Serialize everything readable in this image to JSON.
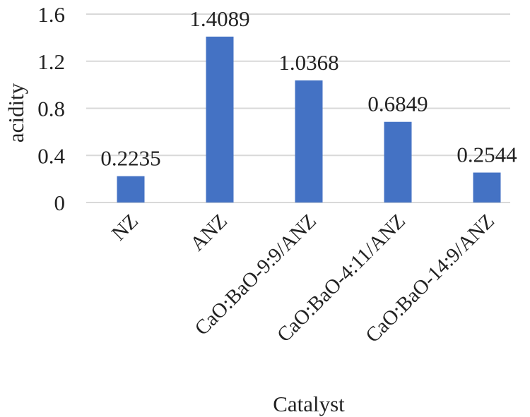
{
  "chart_data": {
    "type": "bar",
    "title": "",
    "xlabel": "Catalyst",
    "ylabel": "acidity",
    "categories": [
      "NZ",
      "ANZ",
      "CaO:BaO-9:9/ANZ",
      "CaO:BaO-4:11/ANZ",
      "CaO:BaO-14:9/ANZ"
    ],
    "values": [
      0.2235,
      1.4089,
      1.0368,
      0.6849,
      0.2544
    ],
    "data_labels": [
      "0.2235",
      "1.4089",
      "1.0368",
      "0.6849",
      "0.2544"
    ],
    "yticks": [
      "0",
      "0.4",
      "0.8",
      "1.2",
      "1.6"
    ],
    "ylim": [
      0,
      1.6
    ],
    "grid": true,
    "legend": "none",
    "bar_color": "#4472c4"
  }
}
